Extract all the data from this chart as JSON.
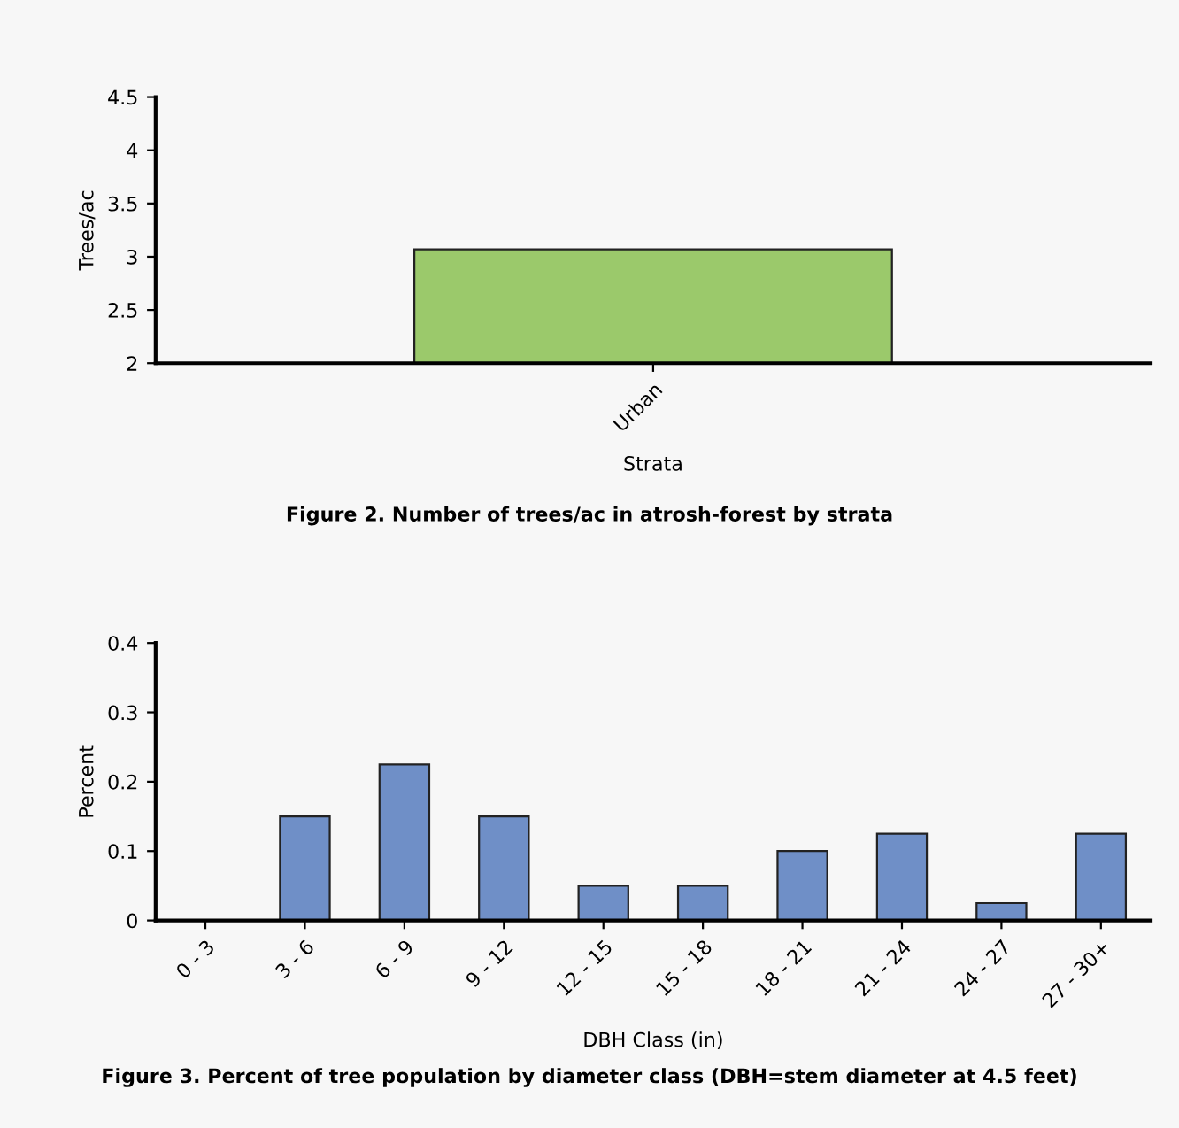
{
  "chart_data": [
    {
      "type": "bar",
      "title": "Figure 2. Number of trees/ac in atrosh-forest by strata",
      "xlabel": "Strata",
      "ylabel": "Trees/ac",
      "categories": [
        "Urban"
      ],
      "values": [
        3.07
      ],
      "color": "#9bc96b",
      "ylim": [
        2,
        4.5
      ],
      "yticks": [
        2,
        2.5,
        3,
        3.5,
        4,
        4.5
      ],
      "grid": false,
      "legend": false
    },
    {
      "type": "bar",
      "title": "Figure 3. Percent of tree population by diameter class (DBH=stem diameter at 4.5 feet)",
      "xlabel": "DBH Class (in)",
      "ylabel": "Percent",
      "categories": [
        "0 - 3",
        "3 - 6",
        "6 - 9",
        "9 - 12",
        "12 - 15",
        "15 - 18",
        "18 - 21",
        "21 - 24",
        "24 - 27",
        "27 - 30+"
      ],
      "values": [
        0,
        0.15,
        0.225,
        0.15,
        0.05,
        0.05,
        0.1,
        0.125,
        0.025,
        0.125
      ],
      "color": "#6f8fc7",
      "ylim": [
        0,
        0.4
      ],
      "yticks": [
        0,
        0.1,
        0.2,
        0.3,
        0.4
      ],
      "grid": false,
      "legend": false
    }
  ]
}
